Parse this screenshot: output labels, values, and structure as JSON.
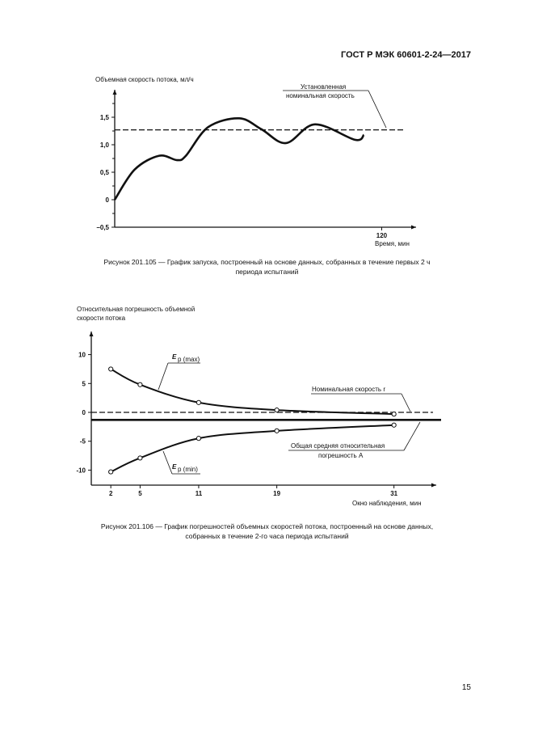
{
  "header": "ГОСТ Р МЭК 60601-2-24—2017",
  "page_number": "15",
  "chart_data": [
    {
      "type": "line",
      "title": "",
      "ylabel": "Объемная скорость потока, мл/ч",
      "xlabel": "Время, мин",
      "yticks": [
        "1,5",
        "1,0",
        "0,5",
        "0",
        "−0,5"
      ],
      "ytick_values": [
        1.5,
        1.0,
        0.5,
        0,
        -0.5
      ],
      "xticks": [
        "120"
      ],
      "xtick_values": [
        120
      ],
      "ylim": [
        -0.5,
        2.0
      ],
      "xlim": [
        0,
        130
      ],
      "series": [
        {
          "name": "flow",
          "x": [
            0,
            9,
            20,
            28,
            32,
            42,
            56,
            66,
            77,
            90,
            108,
            112
          ],
          "y": [
            0,
            0.55,
            0.8,
            0.72,
            0.8,
            1.32,
            1.48,
            1.28,
            1.03,
            1.37,
            1.09,
            1.18
          ]
        }
      ],
      "reference_line": {
        "label": "Установленная номинальная скорость",
        "value": 1.27
      },
      "caption": "Рисунок 201.105 — График запуска, построенный на основе данных, собранных в течение первых 2 ч периода испытаний"
    },
    {
      "type": "line",
      "ylabel": "Относительная погрешность объемной скорости потока",
      "xlabel": "Окно наблюдения, мин",
      "yticks": [
        "10",
        "5",
        "0",
        "-5",
        "-10"
      ],
      "ytick_values": [
        10,
        5,
        0,
        -5,
        -10
      ],
      "xticks": [
        "2",
        "5",
        "11",
        "19",
        "31"
      ],
      "ylim": [
        -12.6,
        14
      ],
      "xlim": [
        0,
        35
      ],
      "series": [
        {
          "name": "Ep(max)",
          "label_main": "E",
          "label_sub": "p",
          "label_paren": "(max)",
          "x": [
            2,
            5,
            11,
            19,
            31
          ],
          "y": [
            7.5,
            4.8,
            1.7,
            0.4,
            -0.3
          ]
        },
        {
          "name": "Ep(min)",
          "label_main": "E",
          "label_sub": "p",
          "label_paren": "(min)",
          "x": [
            2,
            5,
            11,
            19,
            31
          ],
          "y": [
            -10.3,
            -7.9,
            -4.5,
            -3.2,
            -2.2
          ]
        }
      ],
      "reference_line": {
        "label": "Номинальная скорость r",
        "value": 0
      },
      "mean_line": {
        "label": "Общая средняя относительная погрешность A",
        "value": -1.3
      },
      "caption": "Рисунок 201.106 — График погрешностей объемных скоростей потока, построенный на основе данных, собранных в течение 2-го часа периода испытаний"
    }
  ],
  "labels": {
    "c1_ref_1": "Установленная",
    "c1_ref_2": "номинальная скорость",
    "c2_ref": "Номинальная скорость r",
    "c2_mean_1": "Общая средняя относительная",
    "c2_mean_2": "погрешность A",
    "c1_ylabel": "Объемная скорость потока, мл/ч",
    "c1_xlabel": "Время, мин",
    "c2_ylabel_1": "Относительная погрешность объемной",
    "c2_ylabel_2": "скорости потока",
    "c2_xlabel": "Окно наблюдения, мин",
    "cap1_1": "Рисунок 201.105 — График запуска, построенный на основе данных, собранных в течение первых 2 ч",
    "cap1_2": "периода испытаний",
    "cap2_1": "Рисунок 201.106 — График погрешностей объемных скоростей потока, построенный на основе данных,",
    "cap2_2": "собранных в течение 2-го часа периода испытаний"
  }
}
